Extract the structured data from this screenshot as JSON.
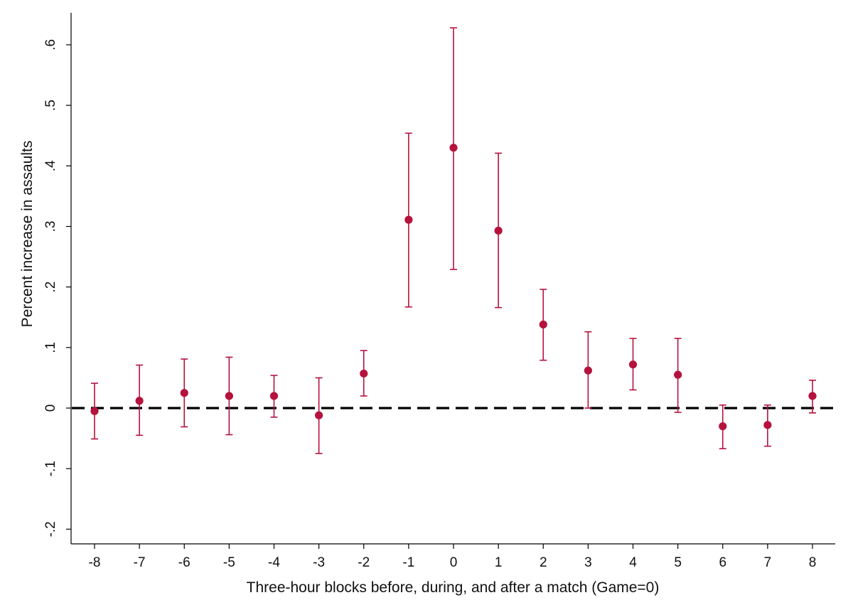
{
  "chart_data": {
    "type": "scatter",
    "title": "",
    "xlabel": "Three-hour blocks before, during, and after a match (Game=0)",
    "ylabel": "Percent increase in assaults",
    "xlim": [
      -8.5,
      8.5
    ],
    "ylim": [
      -0.225,
      0.655
    ],
    "x_ticks": [
      -8,
      -7,
      -6,
      -5,
      -4,
      -3,
      -2,
      -1,
      0,
      1,
      2,
      3,
      4,
      5,
      6,
      7,
      8
    ],
    "x_tick_labels": [
      "-8",
      "-7",
      "-6",
      "-5",
      "-4",
      "-3",
      "-2",
      "-1",
      "0",
      "1",
      "2",
      "3",
      "4",
      "5",
      "6",
      "7",
      "8"
    ],
    "y_ticks": [
      -0.2,
      -0.1,
      0,
      0.1,
      0.2,
      0.3,
      0.4,
      0.5,
      0.6
    ],
    "y_tick_labels": [
      "-.2",
      "-.1",
      "0",
      ".1",
      ".2",
      ".3",
      ".4",
      ".5",
      ".6"
    ],
    "grid": false,
    "reference_line": {
      "y": 0,
      "style": "dashed",
      "color": "#000000"
    },
    "marker_color": "#b5123e",
    "series": [
      {
        "x": [
          -8,
          -7,
          -6,
          -5,
          -4,
          -3,
          -2,
          -1,
          0,
          1,
          2,
          3,
          4,
          5,
          6,
          7,
          8
        ],
        "y": [
          -0.005,
          0.012,
          0.025,
          0.02,
          0.02,
          -0.012,
          0.057,
          0.311,
          0.43,
          0.293,
          0.138,
          0.062,
          0.072,
          0.055,
          -0.03,
          -0.028,
          0.02
        ],
        "ci_low": [
          -0.051,
          -0.045,
          -0.031,
          -0.044,
          -0.015,
          -0.075,
          0.02,
          0.167,
          0.229,
          0.166,
          0.079,
          0.0,
          0.03,
          -0.007,
          -0.067,
          -0.063,
          -0.008
        ],
        "ci_high": [
          0.041,
          0.071,
          0.081,
          0.084,
          0.054,
          0.05,
          0.095,
          0.454,
          0.628,
          0.421,
          0.196,
          0.126,
          0.115,
          0.115,
          0.005,
          0.005,
          0.046
        ]
      }
    ]
  }
}
